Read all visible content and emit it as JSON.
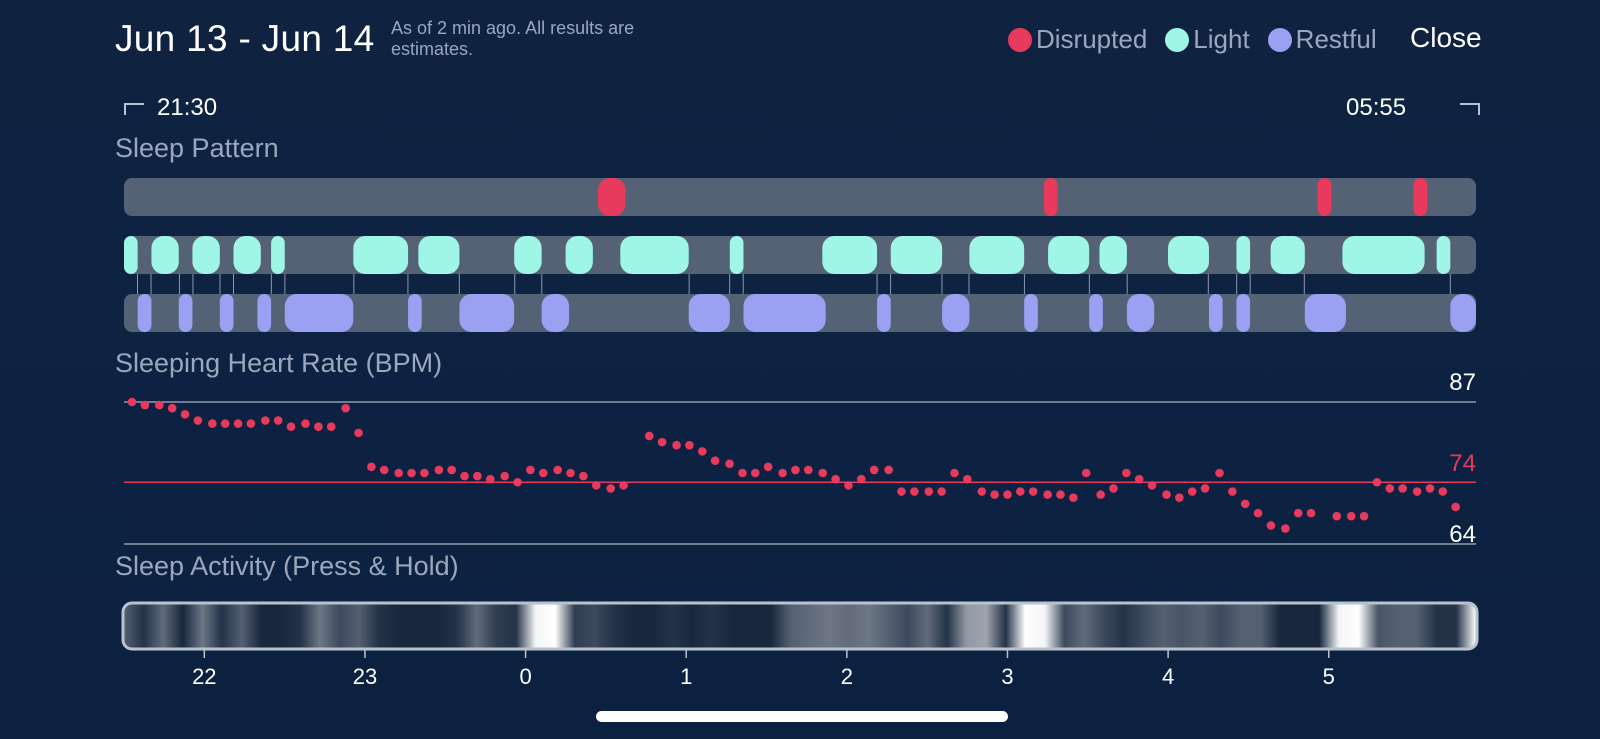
{
  "header": {
    "date_range": "Jun 13 - Jun 14",
    "status_note": "As of 2 min ago. All results are estimates.",
    "close_label": "Close"
  },
  "legend": [
    {
      "label": "Disrupted",
      "color": "#e83a5c",
      "icon": "disrupted-dot-icon"
    },
    {
      "label": "Light",
      "color": "#9ff5e6",
      "icon": "light-dot-icon"
    },
    {
      "label": "Restful",
      "color": "#9aa1f2",
      "icon": "restful-dot-icon"
    }
  ],
  "time_range": {
    "start": "21:30",
    "end": "05:55"
  },
  "sleep_pattern": {
    "title": "Sleep Pattern",
    "tracks": [
      {
        "stage": "Disrupted",
        "color": "#e83a5c",
        "segments": [
          [
            0.3506,
            0.3709
          ],
          [
            0.6804,
            0.6905
          ],
          [
            0.8829,
            0.893
          ],
          [
            0.9538,
            0.9639
          ]
        ]
      },
      {
        "stage": "Light",
        "color": "#9ff5e6",
        "segments": [
          [
            0,
            0.0101
          ],
          [
            0.0203,
            0.0405
          ],
          [
            0.0506,
            0.0709
          ],
          [
            0.081,
            0.1012
          ],
          [
            0.1088,
            0.1189
          ],
          [
            0.1696,
            0.2101
          ],
          [
            0.2177,
            0.2481
          ],
          [
            0.2886,
            0.3089
          ],
          [
            0.3266,
            0.3468
          ],
          [
            0.3671,
            0.4177
          ],
          [
            0.4481,
            0.4582
          ],
          [
            0.5165,
            0.557
          ],
          [
            0.5671,
            0.6051
          ],
          [
            0.6253,
            0.6658
          ],
          [
            0.6835,
            0.7139
          ],
          [
            0.7215,
            0.7418
          ],
          [
            0.7722,
            0.8025
          ],
          [
            0.8228,
            0.8329
          ],
          [
            0.8481,
            0.8734
          ],
          [
            0.9012,
            0.962
          ],
          [
            0.9709,
            0.981
          ]
        ]
      },
      {
        "stage": "Restful",
        "color": "#9aa1f2",
        "segments": [
          [
            0.0101,
            0.0203
          ],
          [
            0.0405,
            0.0506
          ],
          [
            0.0709,
            0.081
          ],
          [
            0.0987,
            0.1088
          ],
          [
            0.1189,
            0.1696
          ],
          [
            0.2101,
            0.2202
          ],
          [
            0.2481,
            0.2886
          ],
          [
            0.3089,
            0.3292
          ],
          [
            0.4177,
            0.4481
          ],
          [
            0.4582,
            0.519
          ],
          [
            0.557,
            0.5671
          ],
          [
            0.6051,
            0.6253
          ],
          [
            0.6658,
            0.6759
          ],
          [
            0.7139,
            0.724
          ],
          [
            0.7418,
            0.762
          ],
          [
            0.8025,
            0.8126
          ],
          [
            0.8228,
            0.8329
          ],
          [
            0.8734,
            0.9038
          ],
          [
            0.981,
            1.0
          ]
        ]
      }
    ]
  },
  "heart_rate": {
    "title": "Sleeping Heart Rate (BPM)",
    "max_label": "87",
    "avg_label": "74",
    "min_label": "64",
    "avg_color": "#e83a5c"
  },
  "sleep_activity": {
    "title": "Sleep Activity (Press & Hold)",
    "intensity": [
      0.3,
      0.1,
      0.35,
      0.05,
      0.4,
      0.1,
      0.3,
      0.05,
      0.05,
      0.1,
      0.4,
      0.2,
      0.3,
      0.1,
      0.05,
      0.05,
      0.05,
      0.1,
      0.35,
      0.15,
      0.1,
      0.95,
      1.0,
      0.15,
      0.2,
      0.1,
      0.05,
      0.05,
      0.1,
      0.05,
      0.1,
      0.05,
      0.05,
      0.05,
      0.3,
      0.35,
      0.4,
      0.35,
      0.4,
      0.3,
      0.2,
      0.35,
      0.1,
      0.55,
      0.6,
      0.1,
      1.0,
      0.95,
      0.2,
      0.35,
      0.2,
      0.1,
      0.2,
      0.3,
      0.25,
      0.3,
      0.2,
      0.3,
      0.3,
      0.05,
      0.05,
      0.05,
      0.95,
      1.0,
      0.25,
      0.3,
      0.3,
      0.1,
      0.1,
      1.0
    ]
  },
  "x_axis": {
    "hour_labels": [
      "22",
      "23",
      "0",
      "1",
      "2",
      "3",
      "4",
      "5"
    ]
  },
  "chart_data": {
    "type": "scatter",
    "title": "Sleeping Heart Rate (BPM)",
    "xlabel": "",
    "ylabel": "",
    "x_unit": "hours from 21:30",
    "x_ticks": [
      {
        "label": "22",
        "x": 0.5
      },
      {
        "label": "23",
        "x": 1.5
      },
      {
        "label": "0",
        "x": 2.5
      },
      {
        "label": "1",
        "x": 3.5
      },
      {
        "label": "2",
        "x": 4.5
      },
      {
        "label": "3",
        "x": 5.5
      },
      {
        "label": "4",
        "x": 6.5
      },
      {
        "label": "5",
        "x": 7.5
      }
    ],
    "xlim": [
      0,
      8.4167
    ],
    "ylim": [
      64,
      87
    ],
    "reference_lines": [
      {
        "label": "87",
        "y": 87
      },
      {
        "label": "74",
        "y": 74
      },
      {
        "label": "64",
        "y": 64
      }
    ],
    "grid": false,
    "series": [
      {
        "name": "",
        "x": [
          0.05,
          0.13,
          0.22,
          0.3,
          0.38,
          0.46,
          0.55,
          0.63,
          0.71,
          0.79,
          0.88,
          0.96,
          1.04,
          1.13,
          1.21,
          1.29,
          1.38,
          1.46,
          1.54,
          1.62,
          1.71,
          1.79,
          1.87,
          1.96,
          2.04,
          2.12,
          2.2,
          2.28,
          2.37,
          2.45,
          2.53,
          2.61,
          2.7,
          2.78,
          2.86,
          2.94,
          3.03,
          3.11,
          3.27,
          3.35,
          3.44,
          3.52,
          3.6,
          3.68,
          3.77,
          3.85,
          3.93,
          4.01,
          4.1,
          4.18,
          4.26,
          4.35,
          4.43,
          4.51,
          4.59,
          4.67,
          4.76,
          4.84,
          4.92,
          5.01,
          5.09,
          5.17,
          5.25,
          5.34,
          5.42,
          5.5,
          5.58,
          5.66,
          5.75,
          5.83,
          5.91,
          5.99,
          6.08,
          6.16,
          6.24,
          6.32,
          6.4,
          6.49,
          6.57,
          6.65,
          6.73,
          6.82,
          6.9,
          6.98,
          7.06,
          7.14,
          7.23,
          7.31,
          7.39,
          7.55,
          7.64,
          7.72,
          7.8,
          7.88,
          7.96,
          8.05,
          8.13,
          8.21,
          8.29
        ],
        "y": [
          87,
          86.5,
          86.5,
          86,
          85,
          84,
          83.5,
          83.5,
          83.5,
          83.5,
          84,
          84,
          83,
          83.5,
          83,
          83,
          86,
          82,
          76.5,
          76,
          75.5,
          75.5,
          75.5,
          76,
          76,
          75,
          75,
          74.5,
          75,
          74,
          76,
          75.5,
          76,
          75.5,
          75,
          73.5,
          73,
          73.5,
          81.5,
          80.5,
          80,
          80,
          79,
          77.5,
          77,
          75.5,
          75.5,
          76.5,
          75.5,
          76,
          76,
          75.5,
          74.5,
          73.5,
          74.5,
          76,
          76,
          72.5,
          72.5,
          72.5,
          72.5,
          75.5,
          74.5,
          72.5,
          72,
          72,
          72.5,
          72.5,
          72,
          72,
          71.5,
          75.5,
          72,
          73,
          75.5,
          74.5,
          73.5,
          72,
          71.5,
          72.5,
          73,
          75.5,
          72.5,
          70.5,
          69,
          67,
          66.5,
          69,
          69,
          68.5,
          68.5,
          68.5,
          74,
          73,
          73,
          72.5,
          73,
          72.5,
          70
        ]
      }
    ]
  }
}
